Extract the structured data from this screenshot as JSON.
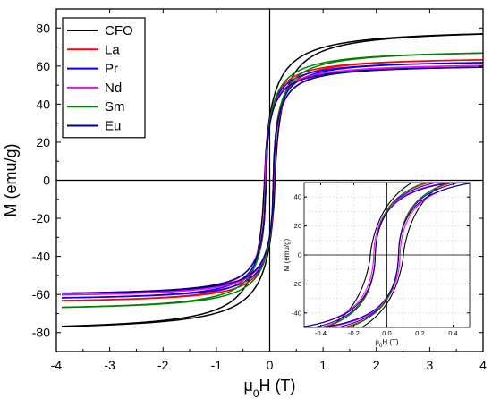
{
  "chart_data": [
    {
      "type": "line",
      "role": "main",
      "title": "",
      "xlabel": "μ0H (T)",
      "ylabel": "M (emu/g)",
      "xlim": [
        -4,
        4
      ],
      "ylim": [
        -90,
        90
      ],
      "xticks": [
        -4,
        -3,
        -2,
        -1,
        0,
        1,
        2,
        3,
        4
      ],
      "yticks": [
        -80,
        -60,
        -40,
        -20,
        0,
        20,
        40,
        60,
        80
      ],
      "xtick_labels": [
        "-4",
        "-3",
        "-2",
        "-1",
        "0",
        "1",
        "2",
        "3",
        "4"
      ],
      "ytick_labels": [
        "-80",
        "-60",
        "-40",
        "-20",
        "0",
        "20",
        "40",
        "60",
        "80"
      ],
      "grid": false,
      "legend_position": "top-left",
      "series": [
        {
          "name": "CFO",
          "color": "#000000",
          "ms": 80,
          "hc": 0.1,
          "h0": 0.22,
          "wp": 0.75
        },
        {
          "name": "La",
          "color": "#ff0000",
          "ms": 65,
          "hc": 0.07,
          "h0": 0.2,
          "wp": 0.55
        },
        {
          "name": "Pr",
          "color": "#0000ff",
          "ms": 63.5,
          "hc": 0.07,
          "h0": 0.2,
          "wp": 0.55
        },
        {
          "name": "Nd",
          "color": "#ff00ff",
          "ms": 62,
          "hc": 0.08,
          "h0": 0.21,
          "wp": 0.55
        },
        {
          "name": "Sm",
          "color": "#008000",
          "ms": 69,
          "hc": 0.07,
          "h0": 0.24,
          "wp": 0.55
        },
        {
          "name": "Eu",
          "color": "#000080",
          "ms": 61,
          "hc": 0.07,
          "h0": 0.2,
          "wp": 0.55
        }
      ],
      "sample_points": [
        {
          "series": "CFO",
          "x": [
            0,
            0.5,
            1,
            2,
            3,
            4
          ],
          "y": [
            16,
            63,
            72,
            77,
            79,
            80
          ]
        },
        {
          "series": "La",
          "x": [
            0,
            0.5,
            1,
            2,
            3,
            4
          ],
          "y": [
            9,
            42,
            51,
            58,
            62,
            65
          ]
        },
        {
          "series": "Sm",
          "x": [
            0,
            0.5,
            1,
            2,
            3,
            4
          ],
          "y": [
            10,
            42,
            53,
            62,
            66,
            69
          ]
        },
        {
          "series": "Eu",
          "x": [
            0,
            0.5,
            1,
            2,
            3,
            4
          ],
          "y": [
            9,
            40,
            48,
            55,
            58,
            61
          ]
        }
      ]
    },
    {
      "type": "line",
      "role": "inset",
      "title": "",
      "xlabel": "μ0H (T)",
      "ylabel": "M (emu/g)",
      "xlim": [
        -0.5,
        0.5
      ],
      "ylim": [
        -50,
        50
      ],
      "xticks": [
        -0.4,
        -0.2,
        0.0,
        0.2,
        0.4
      ],
      "yticks": [
        -40,
        -20,
        0,
        20,
        40
      ],
      "xtick_labels": [
        "-0.4",
        "-0.2",
        "0.0",
        "0.2",
        "0.4"
      ],
      "ytick_labels": [
        "-40",
        "-20",
        "0",
        "20",
        "40"
      ],
      "grid": true
    }
  ]
}
